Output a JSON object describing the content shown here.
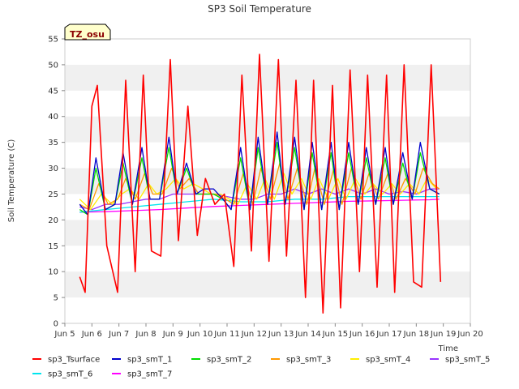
{
  "chart_data": {
    "type": "line",
    "title": "SP3 Soil Temperature",
    "xlabel": "Time",
    "ylabel": "Soil Temperature (C)",
    "xlim": [
      5,
      20
    ],
    "ylim": [
      0,
      55
    ],
    "x_ticks": [
      5,
      6,
      7,
      8,
      9,
      10,
      11,
      12,
      13,
      14,
      15,
      16,
      17,
      18,
      19,
      20
    ],
    "x_tick_labels": [
      "Jun 5",
      "Jun 6",
      "Jun 7",
      "Jun 8",
      "Jun 9",
      "Jun 10",
      "Jun 11",
      "Jun 12",
      "Jun 13",
      "Jun 14",
      "Jun 15",
      "Jun 16",
      "Jun 17",
      "Jun 18",
      "Jun 19",
      "Jun 20"
    ],
    "y_ticks": [
      0,
      5,
      10,
      15,
      20,
      25,
      30,
      35,
      40,
      45,
      50,
      55
    ],
    "grid": "horizontal bands",
    "legend_position": "bottom",
    "annotation": "TZ_osu",
    "series": [
      {
        "name": "sp3_Tsurface",
        "color": "#ff0000",
        "x": [
          5.55,
          5.75,
          6.0,
          6.2,
          6.55,
          6.95,
          7.25,
          7.6,
          7.9,
          8.2,
          8.55,
          8.9,
          9.2,
          9.55,
          9.9,
          10.2,
          10.55,
          10.9,
          11.25,
          11.55,
          11.9,
          12.2,
          12.55,
          12.9,
          13.2,
          13.55,
          13.9,
          14.2,
          14.55,
          14.9,
          15.2,
          15.55,
          15.9,
          16.2,
          16.55,
          16.9,
          17.2,
          17.55,
          17.9,
          18.2,
          18.55,
          18.9
        ],
        "y": [
          9,
          6,
          42,
          46,
          15,
          6,
          47,
          10,
          48,
          14,
          13,
          51,
          16,
          42,
          17,
          28,
          23,
          25,
          11,
          48,
          14,
          52,
          12,
          51,
          13,
          47,
          5,
          47,
          2,
          46,
          3,
          49,
          10,
          48,
          7,
          48,
          6,
          50,
          8,
          7,
          50,
          8
        ]
      },
      {
        "name": "sp3_smT_1",
        "color": "#0000cc",
        "x": [
          5.55,
          5.85,
          6.15,
          6.5,
          6.85,
          7.15,
          7.5,
          7.85,
          8.15,
          8.5,
          8.85,
          9.15,
          9.5,
          9.85,
          10.15,
          10.5,
          10.85,
          11.15,
          11.5,
          11.85,
          12.15,
          12.5,
          12.85,
          13.15,
          13.5,
          13.85,
          14.15,
          14.5,
          14.85,
          15.15,
          15.5,
          15.85,
          16.15,
          16.5,
          16.85,
          17.15,
          17.5,
          17.85,
          18.15,
          18.5,
          18.85
        ],
        "y": [
          23,
          21,
          32,
          22,
          23,
          33,
          23,
          34,
          24,
          24,
          36,
          25,
          31,
          25,
          26,
          26,
          24,
          22,
          34,
          22,
          36,
          23,
          37,
          23,
          36,
          22,
          35,
          22,
          35,
          22,
          35,
          23,
          34,
          23,
          34,
          23,
          33,
          24,
          35,
          26,
          25
        ]
      },
      {
        "name": "sp3_smT_2",
        "color": "#00dd00",
        "x": [
          5.55,
          5.85,
          6.15,
          6.5,
          6.85,
          7.15,
          7.5,
          7.85,
          8.15,
          8.5,
          8.85,
          9.15,
          9.5,
          9.85,
          10.15,
          10.5,
          10.85,
          11.15,
          11.5,
          11.85,
          12.15,
          12.5,
          12.85,
          13.15,
          13.5,
          13.85,
          14.15,
          14.5,
          14.85,
          15.15,
          15.5,
          15.85,
          16.15,
          16.5,
          16.85,
          17.15,
          17.5,
          17.85,
          18.15,
          18.5,
          18.85
        ],
        "y": [
          22,
          21,
          30,
          22,
          23,
          31,
          23,
          32,
          24,
          24,
          34,
          25,
          30,
          25,
          25,
          25,
          24,
          22,
          32,
          22,
          34,
          23,
          35,
          23,
          34,
          22,
          33,
          22,
          33,
          22,
          33,
          23,
          32,
          23,
          32,
          23,
          31,
          24,
          33,
          26,
          25
        ]
      },
      {
        "name": "sp3_smT_3",
        "color": "#ff9900",
        "x": [
          5.55,
          5.9,
          6.25,
          6.6,
          6.95,
          7.25,
          7.6,
          7.95,
          8.25,
          8.6,
          8.95,
          9.25,
          9.6,
          9.95,
          10.25,
          10.6,
          10.95,
          11.25,
          11.6,
          11.95,
          12.25,
          12.6,
          12.95,
          13.25,
          13.6,
          13.95,
          14.25,
          14.6,
          14.95,
          15.25,
          15.6,
          15.95,
          16.25,
          16.6,
          16.95,
          17.25,
          17.6,
          17.95,
          18.25,
          18.6,
          18.85
        ],
        "y": [
          23,
          22,
          27,
          23,
          24,
          28,
          24,
          29,
          25,
          25,
          30,
          26,
          28,
          25,
          25,
          25,
          24,
          23,
          29,
          23,
          30,
          24,
          31,
          24,
          30,
          23,
          30,
          23,
          30,
          23,
          30,
          24,
          29,
          24,
          29,
          24,
          28,
          25,
          30,
          27,
          26
        ]
      },
      {
        "name": "sp3_smT_4",
        "color": "#ffee00",
        "x": [
          5.55,
          5.95,
          6.35,
          6.75,
          7.1,
          7.4,
          7.75,
          8.1,
          8.4,
          8.75,
          9.1,
          9.4,
          9.75,
          10.1,
          10.4,
          10.75,
          11.1,
          11.4,
          11.75,
          12.1,
          12.4,
          12.75,
          13.1,
          13.4,
          13.75,
          14.1,
          14.4,
          14.75,
          15.1,
          15.4,
          15.75,
          16.1,
          16.4,
          16.75,
          17.1,
          17.4,
          17.75,
          18.1,
          18.4,
          18.75
        ],
        "y": [
          24,
          22,
          25,
          23,
          25,
          26,
          24,
          27,
          25,
          26,
          28,
          26,
          27,
          26,
          25,
          25,
          24,
          23,
          27,
          24,
          28,
          24,
          29,
          25,
          28,
          24,
          28,
          24,
          28,
          24,
          28,
          25,
          27,
          25,
          27,
          25,
          27,
          25,
          28,
          26
        ]
      },
      {
        "name": "sp3_smT_5",
        "color": "#9933ff",
        "x": [
          5.55,
          6.0,
          6.5,
          7.0,
          7.5,
          8.0,
          8.5,
          9.0,
          9.5,
          10.0,
          10.5,
          11.0,
          11.5,
          12.0,
          12.5,
          13.0,
          13.5,
          14.0,
          14.5,
          15.0,
          15.5,
          16.0,
          16.5,
          17.0,
          17.5,
          18.0,
          18.5,
          18.85
        ],
        "y": [
          22.5,
          22,
          23,
          23,
          23.5,
          24,
          24,
          25,
          25,
          25,
          25,
          24.5,
          24,
          24,
          25,
          25,
          26,
          25,
          26,
          25,
          26,
          25,
          26,
          25,
          25.5,
          25,
          26,
          26
        ]
      },
      {
        "name": "sp3_smT_6",
        "color": "#00e5ee",
        "x": [
          5.55,
          6.5,
          7.5,
          8.5,
          9.5,
          10.5,
          11.5,
          12.5,
          13.5,
          14.5,
          15.5,
          16.5,
          17.5,
          18.5,
          18.85
        ],
        "y": [
          21.5,
          22,
          22.5,
          23,
          23.5,
          24,
          23.5,
          23.5,
          24,
          24,
          24.5,
          24.5,
          24.5,
          24.5,
          24.5
        ]
      },
      {
        "name": "sp3_smT_7",
        "color": "#ff00ff",
        "x": [
          5.55,
          6.5,
          7.5,
          8.5,
          9.5,
          10.5,
          11.5,
          12.5,
          13.5,
          14.5,
          15.5,
          16.5,
          17.5,
          18.5,
          18.85
        ],
        "y": [
          21.5,
          21.6,
          21.8,
          22,
          22.3,
          22.6,
          22.8,
          23,
          23.2,
          23.4,
          23.6,
          23.7,
          23.8,
          23.9,
          24
        ]
      }
    ]
  }
}
